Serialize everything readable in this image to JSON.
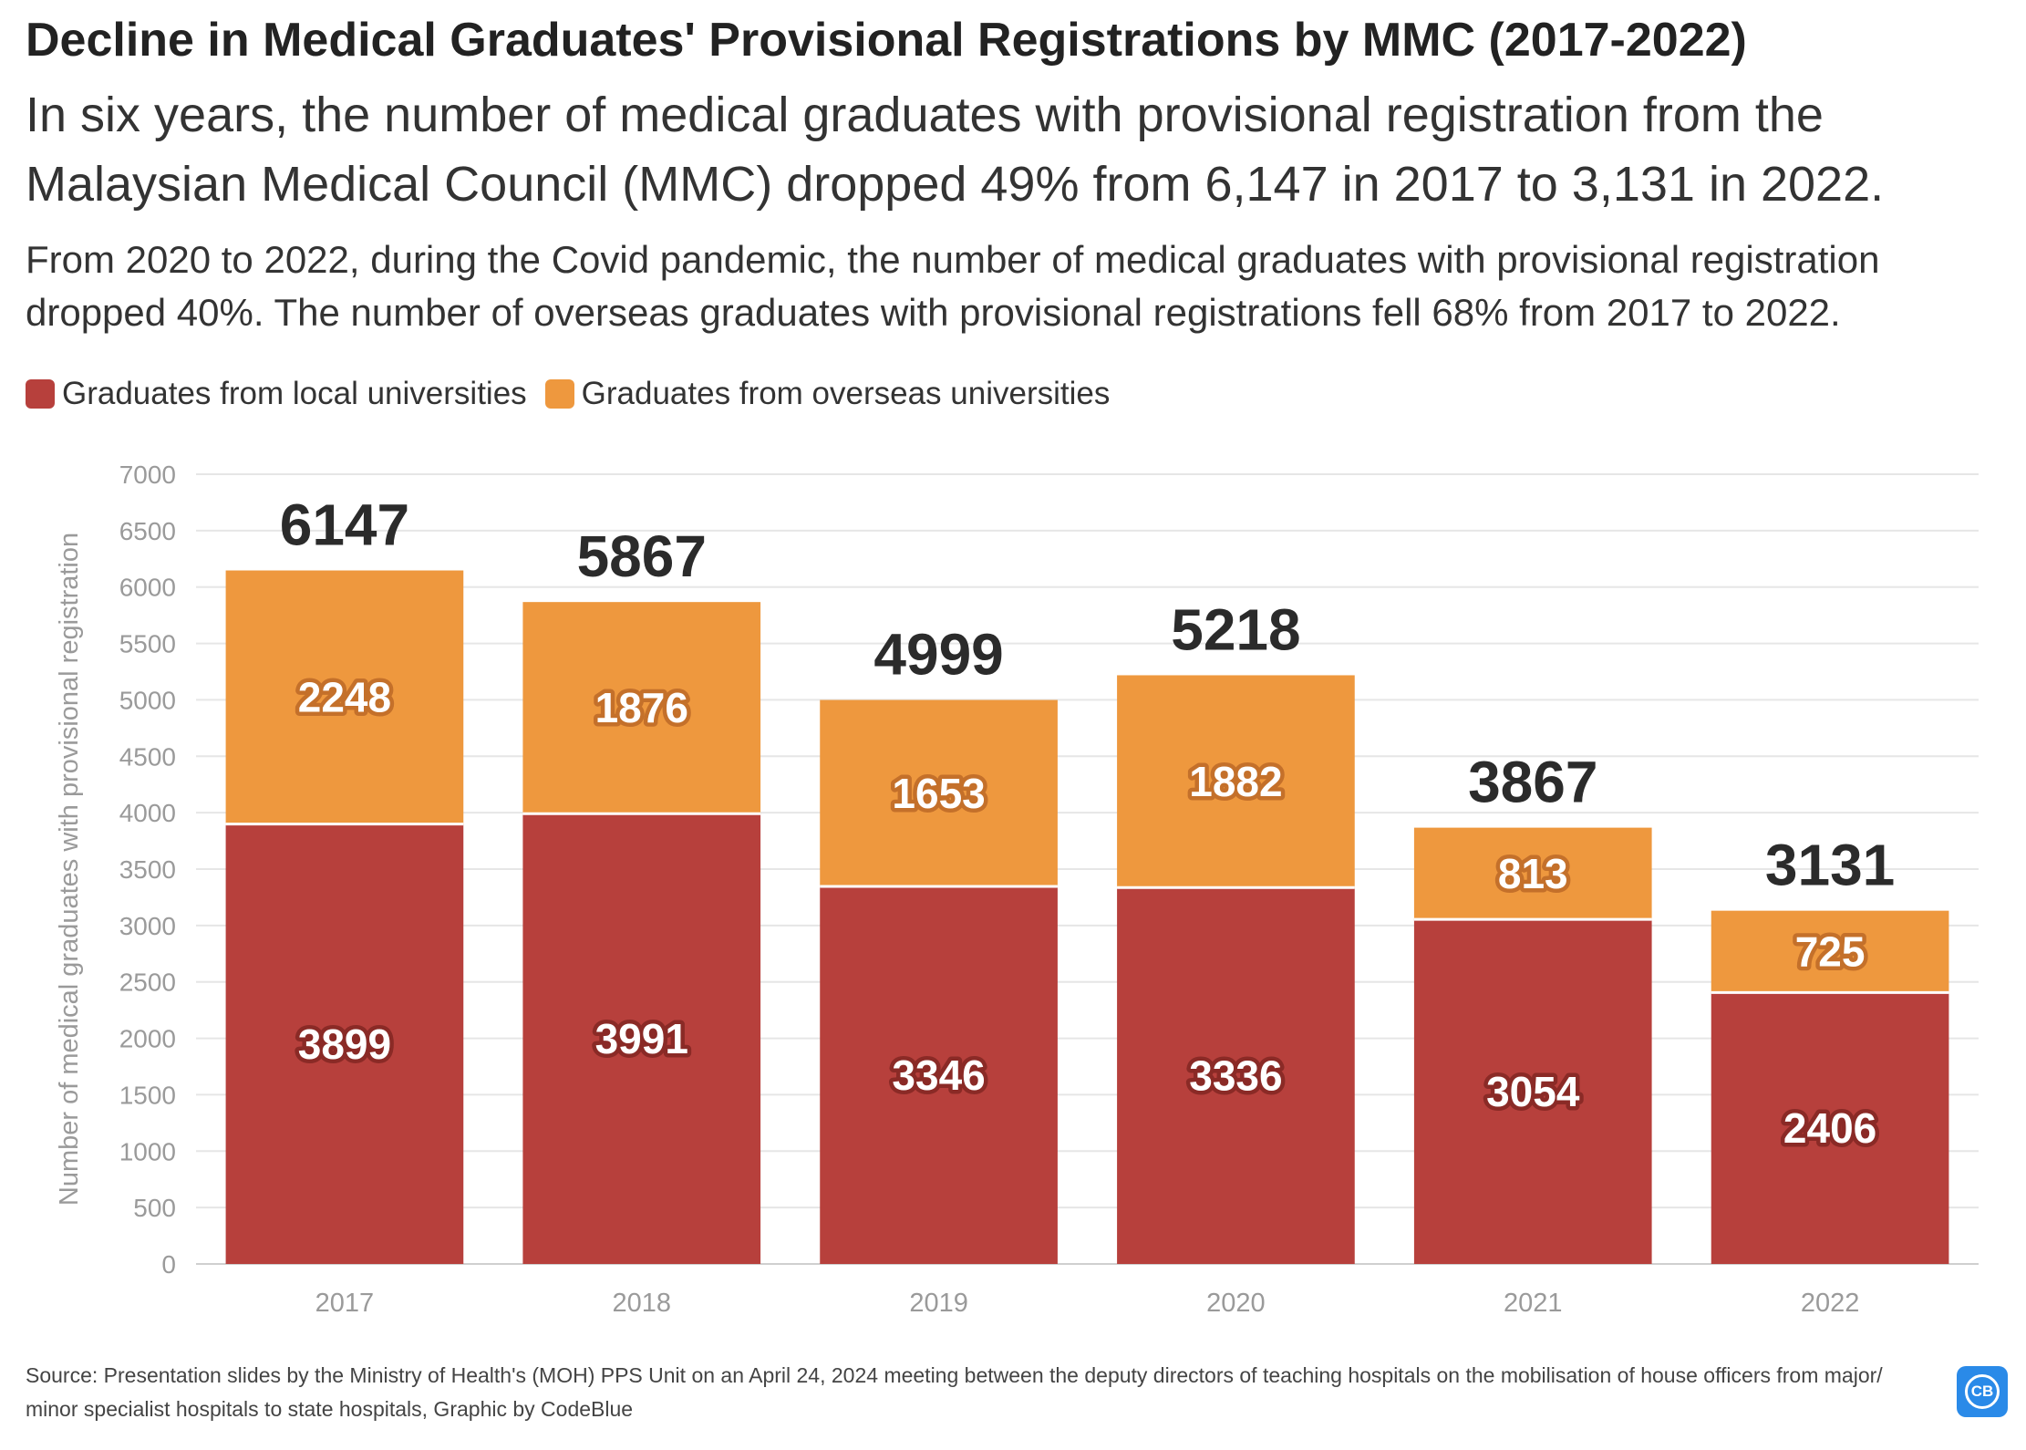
{
  "title": "Decline in Medical Graduates' Provisional Registrations by MMC (2017-2022)",
  "subtitle": "In six years, the number of medical graduates with provisional registration from the Malaysian Medical Council (MMC) dropped 49% from 6,147 in 2017 to 3,131 in 2022.",
  "description": "From 2020 to 2022, during the Covid pandemic, the number of medical graduates with provisional registration dropped 40%. The number of overseas graduates with provisional registrations fell 68% from 2017 to 2022.",
  "source": "Source: Presentation slides by the Ministry of Health's (MOH) PPS Unit on an April 24, 2024 meeting between the deputy directors of teaching hospitals on the mobilisation of house officers from major/ minor specialist hospitals to state hospitals, Graphic by CodeBlue",
  "logo_text": "CB",
  "colors": {
    "local": "#b7403c",
    "overseas": "#ee983e",
    "grid": "#e6e6e6",
    "axis_text": "#9a9a9a",
    "total_label": "#2b2b2b",
    "logo": "#2a8ae8"
  },
  "chart_data": {
    "type": "bar",
    "stacked": true,
    "categories": [
      "2017",
      "2018",
      "2019",
      "2020",
      "2021",
      "2022"
    ],
    "series": [
      {
        "name": "Graduates from local universities",
        "color": "#b7403c",
        "values": [
          3899,
          3991,
          3346,
          3336,
          3054,
          2406
        ]
      },
      {
        "name": "Graduates from overseas universities",
        "color": "#ee983e",
        "values": [
          2248,
          1876,
          1653,
          1882,
          813,
          725
        ]
      }
    ],
    "totals": [
      6147,
      5867,
      4999,
      5218,
      3867,
      3131
    ],
    "xlabel": "",
    "ylabel": "Number of medical graduates with provisional registration",
    "ylim": [
      0,
      7000
    ],
    "yticks": [
      0,
      500,
      1000,
      1500,
      2000,
      2500,
      3000,
      3500,
      4000,
      4500,
      5000,
      5500,
      6000,
      6500,
      7000
    ],
    "grid": true,
    "legend_position": "top-left"
  }
}
